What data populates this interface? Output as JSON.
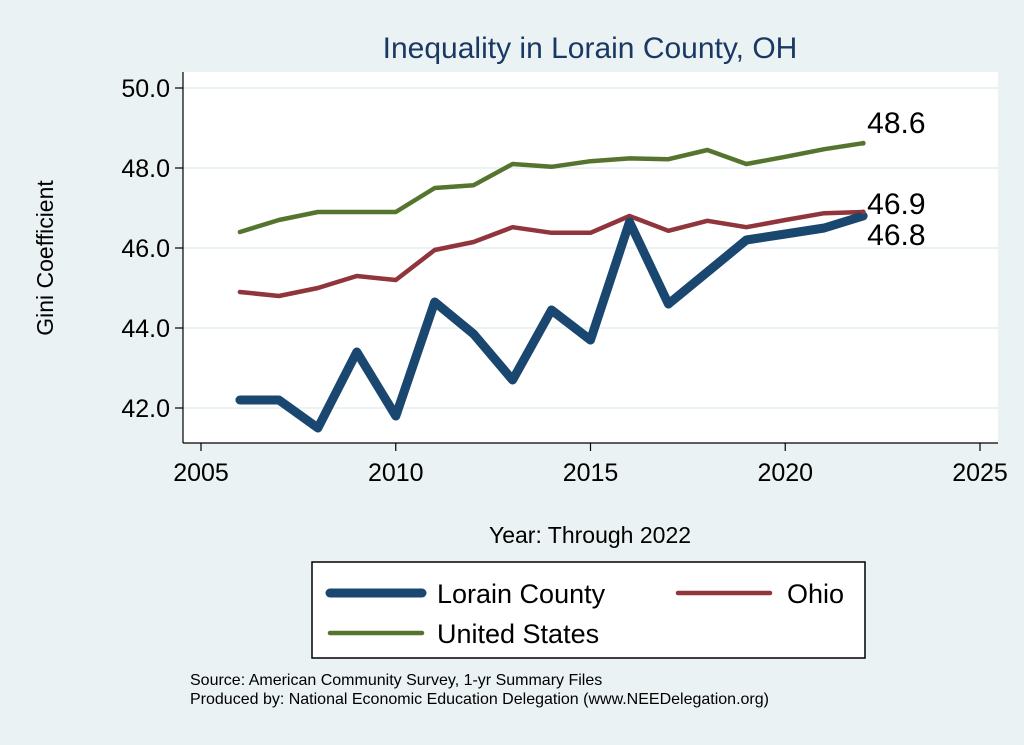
{
  "chart_data": {
    "type": "line",
    "title": "Inequality in Lorain County, OH",
    "xlabel": "Year: Through 2022",
    "ylabel": "Gini Coefficient",
    "xlim": [
      2005,
      2025
    ],
    "ylim": [
      41.0,
      50.5
    ],
    "x_ticks": [
      2005,
      2010,
      2015,
      2020,
      2025
    ],
    "x_tick_labels": [
      "2005",
      "2010",
      "2015",
      "2020",
      "2025"
    ],
    "y_ticks": [
      42,
      44,
      46,
      48,
      50
    ],
    "y_tick_labels": [
      "42.0",
      "44.0",
      "46.0",
      "48.0",
      "50.0"
    ],
    "grid": true,
    "legend_position": "bottom",
    "series": [
      {
        "name": "Lorain County",
        "color": "#1a476f",
        "x": [
          2006,
          2007,
          2008,
          2009,
          2010,
          2011,
          2012,
          2013,
          2014,
          2015,
          2016,
          2017,
          2018,
          2019,
          2020,
          2021,
          2022
        ],
        "values": [
          42.2,
          42.2,
          41.5,
          43.4,
          41.8,
          44.65,
          43.85,
          42.7,
          44.45,
          43.7,
          46.65,
          44.6,
          45.4,
          46.2,
          46.35,
          46.5,
          46.8
        ],
        "end_label": "46.8"
      },
      {
        "name": "Ohio",
        "color": "#90353b",
        "x": [
          2006,
          2007,
          2008,
          2009,
          2010,
          2011,
          2012,
          2013,
          2014,
          2015,
          2016,
          2017,
          2018,
          2019,
          2020,
          2021,
          2022
        ],
        "values": [
          44.9,
          44.8,
          45.0,
          45.3,
          45.2,
          45.95,
          46.15,
          46.52,
          46.38,
          46.38,
          46.8,
          46.43,
          46.68,
          46.52,
          46.7,
          46.87,
          46.9
        ],
        "end_label": "46.9"
      },
      {
        "name": "United States",
        "color": "#55752f",
        "x": [
          2006,
          2007,
          2008,
          2009,
          2010,
          2011,
          2012,
          2013,
          2014,
          2015,
          2016,
          2017,
          2018,
          2019,
          2020,
          2021,
          2022
        ],
        "values": [
          46.4,
          46.7,
          46.9,
          46.9,
          46.9,
          47.5,
          47.57,
          48.1,
          48.03,
          48.17,
          48.24,
          48.22,
          48.45,
          48.1,
          48.28,
          48.47,
          48.62
        ],
        "end_label": "48.6"
      }
    ],
    "legend": [
      "Lorain County",
      "Ohio",
      "United States"
    ],
    "source_line1": "Source: American Community Survey, 1-yr Summary Files",
    "source_line2": "Produced by: National Economic Education Delegation (www.NEEDelegation.org)"
  },
  "colors": {
    "background": "#eaf2f3",
    "plot_background": "#ffffff",
    "title": "#1a3864",
    "grid": "#eaf2f3"
  }
}
